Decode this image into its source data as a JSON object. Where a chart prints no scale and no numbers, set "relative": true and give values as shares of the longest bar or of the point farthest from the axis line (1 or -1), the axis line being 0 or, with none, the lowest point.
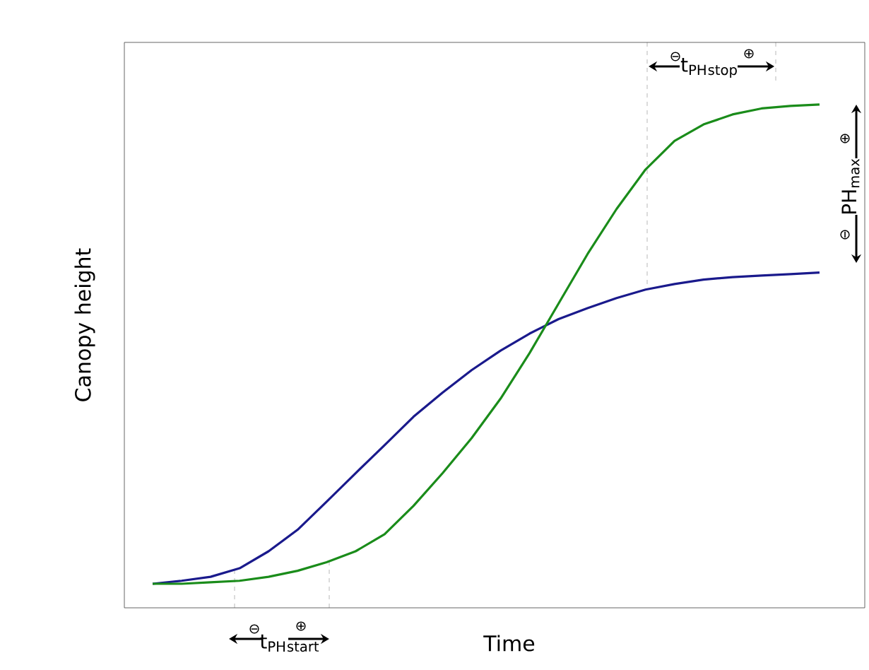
{
  "chart_data": {
    "type": "line",
    "relative": true,
    "xlabel": "Time",
    "ylabel": "Canopy height",
    "categories": [
      null,
      null,
      null,
      null,
      null,
      null,
      null,
      null,
      null,
      null,
      null,
      null,
      null,
      null,
      null,
      null,
      null,
      null,
      null,
      null,
      null,
      null,
      null,
      null
    ],
    "series": [
      {
        "color": "#1a1a8c",
        "values": [
          0.042,
          0.048,
          0.056,
          0.073,
          0.107,
          0.15,
          0.206,
          0.263,
          0.319,
          0.376,
          0.424,
          0.469,
          0.508,
          0.542,
          0.571,
          0.593,
          0.613,
          0.63,
          0.641,
          0.65,
          0.655,
          0.658,
          0.661,
          0.664
        ]
      },
      {
        "color": "#1a8c1a",
        "values": [
          0.042,
          0.042,
          0.045,
          0.048,
          0.056,
          0.068,
          0.085,
          0.107,
          0.141,
          0.198,
          0.263,
          0.333,
          0.412,
          0.503,
          0.602,
          0.701,
          0.791,
          0.87,
          0.927,
          0.96,
          0.98,
          0.992,
          0.997,
          1.0
        ]
      }
    ],
    "annotations": [
      "t$_{PH}$$_{start}$",
      "t$_{PH}$$_{stop}$",
      "PH$_{max}$",
      "⊖",
      "⊕",
      "⊖",
      "⊕",
      "⊖",
      "⊕"
    ],
    "line_style": "solid",
    "marker": "none"
  }
}
